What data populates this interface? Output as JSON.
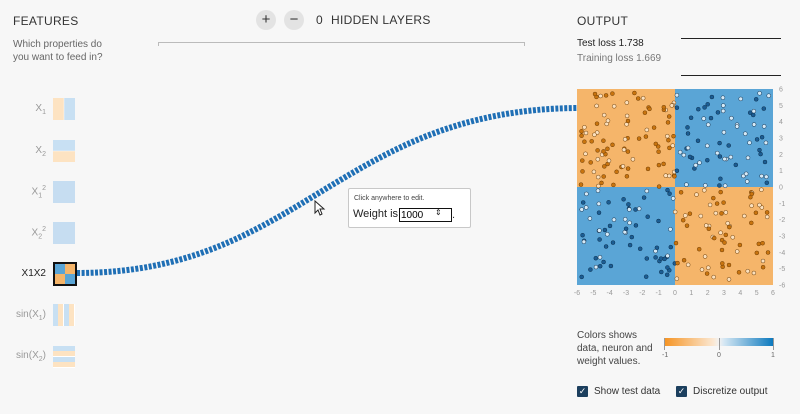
{
  "features": {
    "title": "FEATURES",
    "question_line1": "Which properties do",
    "question_line2": "you want to feed in?",
    "items": [
      {
        "base": "X",
        "sub": "1",
        "sup": ""
      },
      {
        "base": "X",
        "sub": "2",
        "sup": ""
      },
      {
        "base": "X",
        "sub": "1",
        "sup": "2"
      },
      {
        "base": "X",
        "sub": "2",
        "sup": "2"
      },
      {
        "label": "X1X2"
      },
      {
        "fn": "sin(X",
        "sub": "1",
        "close": ")"
      },
      {
        "fn": "sin(X",
        "sub": "2",
        "close": ")"
      }
    ]
  },
  "layers": {
    "add_icon": "+",
    "remove_icon": "−",
    "count": "0",
    "label": "HIDDEN LAYERS"
  },
  "tooltip": {
    "hint": "Click anywhere to edit.",
    "weight_label": "Weight is",
    "weight_value": "1000",
    "spinner": "⇕",
    "trailing": "."
  },
  "output": {
    "title": "OUTPUT",
    "test_loss": "Test loss 1.738",
    "training_loss": "Training loss 1.669",
    "x_ticks": [
      "-6",
      "-5",
      "-4",
      "-3",
      "-2",
      "-1",
      "0",
      "1",
      "2",
      "3",
      "4",
      "5",
      "6"
    ],
    "y_ticks": [
      "6",
      "5",
      "4",
      "3",
      "2",
      "1",
      "0",
      "-1",
      "-2",
      "-3",
      "-4",
      "-5",
      "-6"
    ],
    "legend_line1": "Colors shows",
    "legend_line2": "data, neuron and",
    "legend_line3": "weight values.",
    "scale_min": "-1",
    "scale_mid": "0",
    "scale_max": "1",
    "show_test_label": "Show test data",
    "discretize_label": "Discretize output",
    "check_mark": "✓"
  },
  "colors": {
    "orange": "#f5b56a",
    "blue": "#5aa5d6",
    "link": "#1f6fb5",
    "checkbox": "#1c3f5e"
  }
}
